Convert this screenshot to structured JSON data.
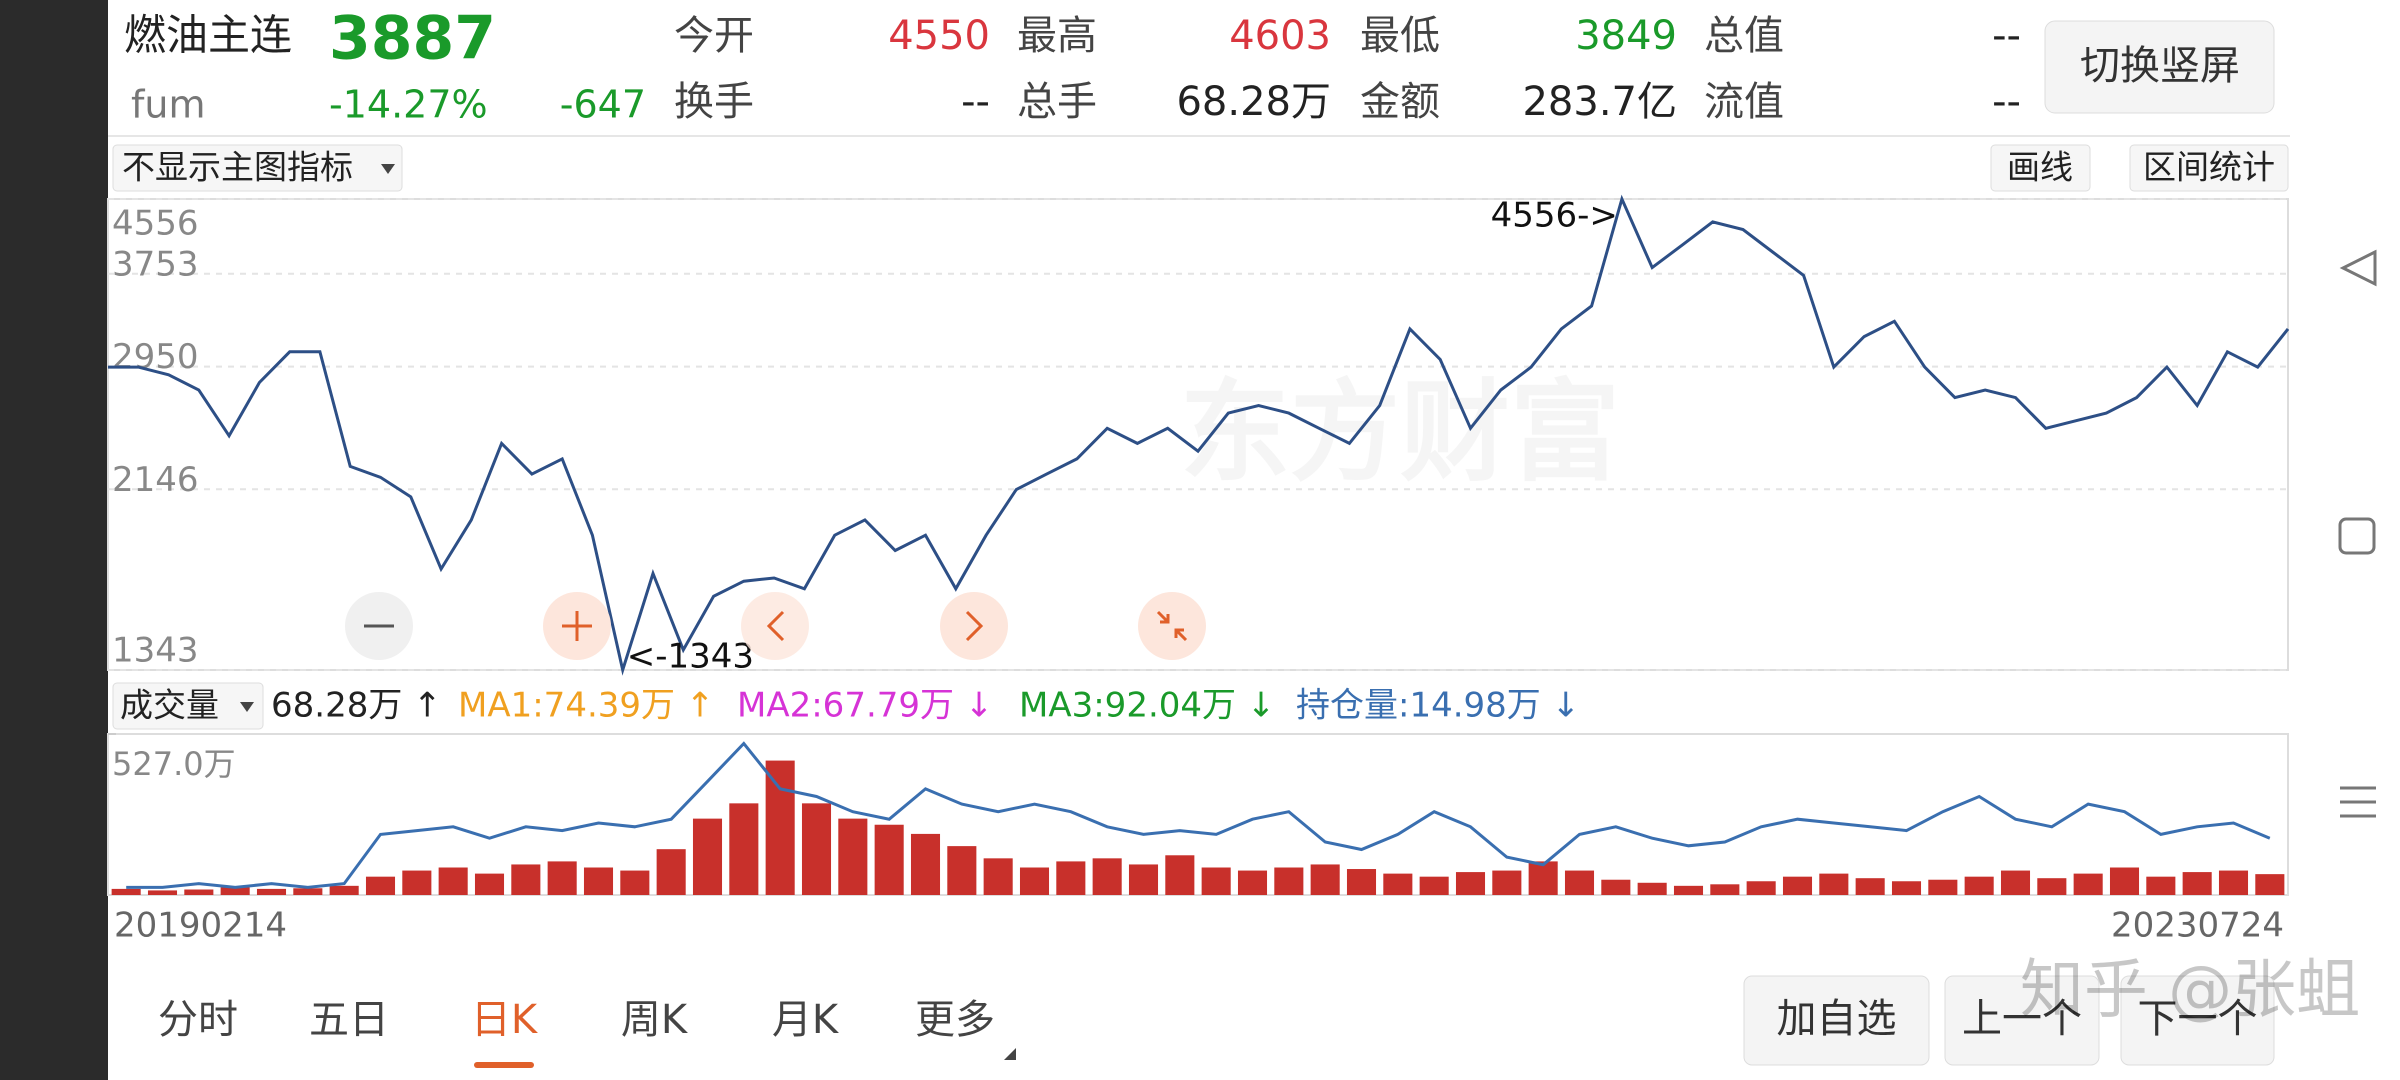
{
  "quote": {
    "name": "燃油主连",
    "price": "3887",
    "code": "fum",
    "change_pct": "-14.27%",
    "change": "-647"
  },
  "fields": [
    {
      "label": "今开",
      "value": "4550",
      "color": "#d9363e"
    },
    {
      "label": "最高",
      "value": "4603",
      "color": "#d9363e"
    },
    {
      "label": "最低",
      "value": "3849",
      "color": "#1a9a2a"
    },
    {
      "label": "总值",
      "value": "--",
      "color": "#222222"
    },
    {
      "label": "换手",
      "value": "--",
      "color": "#222222"
    },
    {
      "label": "总手",
      "value": "68.28万",
      "color": "#222222"
    },
    {
      "label": "金额",
      "value": "283.7亿",
      "color": "#222222"
    },
    {
      "label": "流值",
      "value": "--",
      "color": "#222222"
    }
  ],
  "toolbar": {
    "orientation_button": "切换竖屏",
    "indicator_select": "不显示主图指标",
    "draw_button": "画线",
    "stats_button": "区间统计"
  },
  "chart_data": [
    {
      "type": "line",
      "log_scale": true,
      "grid": true,
      "series": [
        {
          "color": "#2d4f86",
          "values": [
            2946,
            2946,
            2888,
            2776,
            2465,
            2831,
            3065,
            3065,
            2277,
            2214,
            2104,
            1745,
            1982,
            2417,
            2232,
            2322,
            1905,
            1343,
            1725,
            1415,
            1626,
            1691,
            1705,
            1658,
            1905,
            1982,
            1831,
            1905,
            1658,
            1905,
            2145,
            2232,
            2322,
            2514,
            2417,
            2514,
            2369,
            2615,
            2667,
            2615,
            2514,
            2417,
            2667,
            3253,
            3005,
            2514,
            2776,
            2946,
            3253,
            3452,
            4556,
            3813,
            4045,
            4293,
            4210,
            3966,
            3737,
            2946,
            3189,
            3318,
            2946,
            2722,
            2776,
            2722,
            2514,
            2564,
            2615,
            2722,
            2946,
            2667,
            3065,
            2946,
            3253
          ]
        }
      ],
      "ylim": [
        1343,
        4556
      ],
      "yticks": [
        1343,
        2146,
        2950,
        3753,
        4556
      ],
      "annotations": [
        "4556->",
        "<-1343"
      ]
    },
    {
      "type": "bar",
      "indicator_select": "成交量",
      "legend": [
        {
          "text": "68.28万 ↑",
          "color": "#222222"
        },
        {
          "text": "MA1:74.39万 ↑",
          "color": "#f0a020"
        },
        {
          "text": "MA2:67.79万 ↓",
          "color": "#d633d6"
        },
        {
          "text": "MA3:92.04万 ↓",
          "color": "#1a9a2a"
        },
        {
          "text": "持仓量:14.98万 ↓",
          "color": "#3a6fb0"
        }
      ],
      "categories": [
        "20190214",
        null,
        null,
        null,
        null,
        null,
        null,
        null,
        null,
        null,
        null,
        null,
        null,
        null,
        null,
        null,
        null,
        null,
        null,
        null,
        null,
        null,
        null,
        null,
        null,
        null,
        null,
        null,
        null,
        null,
        null,
        null,
        null,
        null,
        null,
        null,
        null,
        null,
        null,
        null,
        null,
        null,
        null,
        null,
        null,
        null,
        null,
        null,
        null,
        null,
        null,
        null,
        null,
        null,
        null,
        null,
        null,
        null,
        null,
        "20230724"
      ],
      "series": [
        {
          "color": "#c8302b",
          "values": [
            20,
            15,
            18,
            25,
            20,
            22,
            30,
            60,
            80,
            90,
            70,
            100,
            110,
            90,
            80,
            150,
            250,
            300,
            440,
            300,
            250,
            230,
            200,
            160,
            120,
            90,
            110,
            120,
            100,
            130,
            90,
            80,
            90,
            100,
            85,
            70,
            60,
            75,
            80,
            110,
            80,
            50,
            40,
            30,
            35,
            45,
            60,
            70,
            55,
            45,
            50,
            60,
            80,
            55,
            70,
            90,
            60,
            75,
            80,
            68.28
          ]
        },
        {
          "color": "#3a6fb0",
          "axis": "y2",
          "values": [
            2,
            2,
            3,
            2,
            3,
            2,
            3,
            16,
            17,
            18,
            15,
            18,
            17,
            19,
            18,
            20,
            30,
            40,
            28,
            26,
            22,
            20,
            28,
            24,
            22,
            24,
            22,
            18,
            16,
            17,
            16,
            20,
            22,
            14,
            12,
            16,
            22,
            18,
            10,
            8,
            16,
            18,
            15,
            13,
            14,
            18,
            20,
            19,
            18,
            17,
            22,
            26,
            20,
            18,
            24,
            22,
            16,
            18,
            19,
            14.98
          ]
        }
      ],
      "ylim": [
        0,
        527
      ],
      "yticks": [
        {
          "value": 527,
          "label": "527.0万"
        }
      ],
      "y2lim": [
        0,
        42.5
      ]
    }
  ],
  "tabs": {
    "items": [
      "分时",
      "五日",
      "日K",
      "周K",
      "月K",
      "更多"
    ],
    "active": 2
  },
  "buttons": [
    "加自选",
    "上一个",
    "下一个"
  ],
  "watermarks": [
    "东方财富",
    "知乎 @张蛆"
  ]
}
